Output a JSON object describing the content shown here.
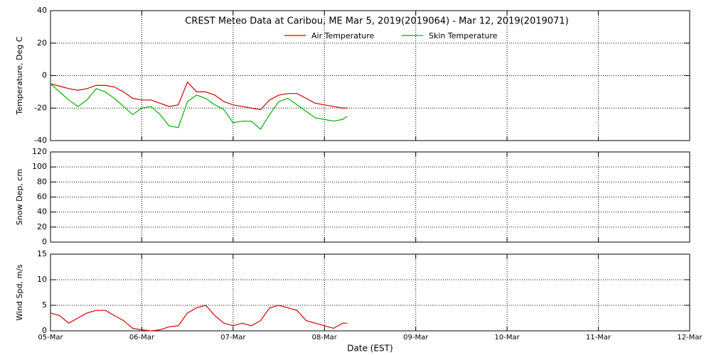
{
  "chart_data": [
    {
      "type": "line",
      "title": "CREST Meteo Data at Caribou, ME   Mar  5, 2019(2019064) - Mar 12, 2019(2019071)",
      "y_label": "Temperature, Deg C",
      "xlim": [
        0,
        7
      ],
      "xticks": [
        0,
        1,
        2,
        3,
        4,
        5,
        6,
        7
      ],
      "ylim": [
        -40,
        40
      ],
      "yticks": [
        -40,
        -20,
        0,
        20,
        40
      ],
      "grid": true,
      "x": [
        0,
        0.1,
        0.2,
        0.3,
        0.4,
        0.5,
        0.6,
        0.7,
        0.8,
        0.9,
        1.0,
        1.1,
        1.2,
        1.3,
        1.4,
        1.5,
        1.6,
        1.7,
        1.8,
        1.9,
        2.0,
        2.1,
        2.2,
        2.3,
        2.4,
        2.5,
        2.6,
        2.7,
        2.8,
        2.9,
        3.0,
        3.1,
        3.2,
        3.25
      ],
      "series": [
        {
          "name": "Air Temperature",
          "color": "#d00000",
          "values": [
            -5,
            -6.5,
            -8,
            -9,
            -8,
            -6,
            -6,
            -7,
            -10,
            -14,
            -15,
            -15,
            -17,
            -19,
            -18,
            -4,
            -10,
            -10,
            -12,
            -16,
            -18,
            -19,
            -20,
            -21,
            -15,
            -12,
            -11,
            -11,
            -14,
            -17,
            -18,
            -19,
            -20,
            -20
          ]
        },
        {
          "name": "Skin Temperature",
          "color": "#00b000",
          "values": [
            -5,
            -10,
            -15,
            -19,
            -15,
            -8,
            -10,
            -14,
            -19,
            -24,
            -20,
            -19,
            -24,
            -31,
            -32,
            -16,
            -12,
            -14,
            -18,
            -21,
            -29,
            -28,
            -28,
            -33,
            -24,
            -16,
            -14,
            -18,
            -22,
            -26,
            -27,
            -28,
            -27,
            -25
          ]
        }
      ]
    },
    {
      "type": "line",
      "y_label": "Snow Dep, cm",
      "xlim": [
        0,
        7
      ],
      "xticks": [
        0,
        1,
        2,
        3,
        4,
        5,
        6,
        7
      ],
      "ylim": [
        0,
        120
      ],
      "yticks": [
        0,
        20,
        40,
        60,
        80,
        100,
        120
      ],
      "grid": true,
      "x": [],
      "series": []
    },
    {
      "type": "line",
      "y_label": "Wind Spd, m/s",
      "x_label": "Date (EST)",
      "xlim": [
        0,
        7
      ],
      "xticks": [
        {
          "value": 0,
          "label": "05-Mar"
        },
        {
          "value": 1,
          "label": "06-Mar"
        },
        {
          "value": 2,
          "label": "07-Mar"
        },
        {
          "value": 3,
          "label": "08-Mar"
        },
        {
          "value": 4,
          "label": "09-Mar"
        },
        {
          "value": 5,
          "label": "10-Mar"
        },
        {
          "value": 6,
          "label": "11-Mar"
        },
        {
          "value": 7,
          "label": "12-Mar"
        }
      ],
      "ylim": [
        0,
        15
      ],
      "yticks": [
        0,
        5,
        10,
        15
      ],
      "grid": true,
      "x": [
        0,
        0.1,
        0.2,
        0.3,
        0.4,
        0.5,
        0.6,
        0.7,
        0.8,
        0.9,
        1.0,
        1.1,
        1.2,
        1.3,
        1.4,
        1.5,
        1.6,
        1.7,
        1.8,
        1.9,
        2.0,
        2.1,
        2.2,
        2.3,
        2.4,
        2.5,
        2.6,
        2.7,
        2.8,
        2.9,
        3.0,
        3.1,
        3.2,
        3.25
      ],
      "series": [
        {
          "color": "#d00000",
          "values": [
            3.5,
            3,
            1.5,
            2.5,
            3.5,
            4,
            4,
            3,
            2,
            0.5,
            0.2,
            0,
            0.2,
            0.8,
            1,
            3.5,
            4.5,
            5,
            3,
            1.5,
            1,
            1.5,
            1,
            2,
            4.5,
            5,
            4.5,
            4,
            2,
            1.5,
            1,
            0.5,
            1.5,
            1.5
          ]
        }
      ]
    }
  ]
}
